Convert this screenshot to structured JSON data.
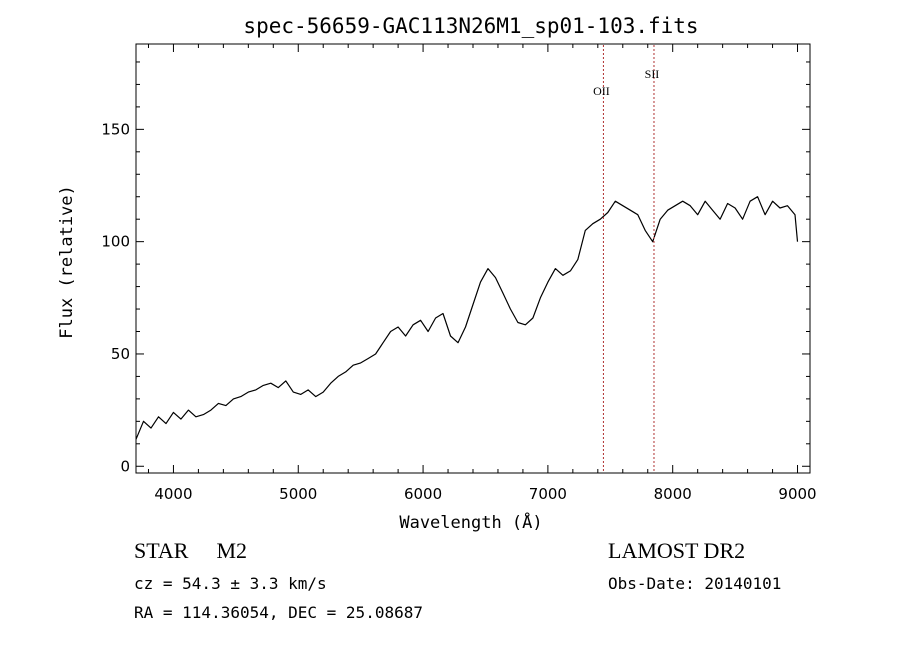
{
  "chart_data": {
    "type": "line",
    "title": "spec-56659-GAC113N26M1_sp01-103.fits",
    "xlabel": "Wavelength (Å)",
    "ylabel": "Flux (relative)",
    "xlim": [
      3700,
      9100
    ],
    "ylim": [
      -3,
      188
    ],
    "xticks": [
      4000,
      5000,
      6000,
      7000,
      8000,
      9000
    ],
    "yticks": [
      0,
      50,
      100,
      150
    ],
    "line_color": "#000000",
    "marker_color": "#b03030",
    "emission_lines": [
      {
        "name": "OII",
        "wavelength": 7445
      },
      {
        "name": "SII",
        "wavelength": 7850
      }
    ],
    "series": [
      {
        "name": "flux",
        "x": [
          3700,
          3760,
          3820,
          3880,
          3940,
          4000,
          4060,
          4120,
          4180,
          4240,
          4300,
          4360,
          4420,
          4480,
          4540,
          4600,
          4660,
          4720,
          4780,
          4840,
          4900,
          4960,
          5020,
          5080,
          5140,
          5200,
          5260,
          5320,
          5380,
          5440,
          5500,
          5560,
          5620,
          5680,
          5740,
          5800,
          5860,
          5920,
          5980,
          6040,
          6100,
          6160,
          6220,
          6280,
          6340,
          6400,
          6460,
          6520,
          6580,
          6640,
          6700,
          6760,
          6820,
          6880,
          6940,
          7000,
          7060,
          7120,
          7180,
          7240,
          7300,
          7360,
          7420,
          7480,
          7540,
          7600,
          7660,
          7720,
          7780,
          7840,
          7900,
          7960,
          8020,
          8080,
          8140,
          8200,
          8260,
          8320,
          8380,
          8440,
          8500,
          8560,
          8620,
          8680,
          8740,
          8800,
          8860,
          8920,
          8980,
          9000
        ],
        "y": [
          12,
          20,
          17,
          22,
          19,
          24,
          21,
          25,
          22,
          23,
          25,
          28,
          27,
          30,
          31,
          33,
          34,
          36,
          37,
          35,
          38,
          33,
          32,
          34,
          31,
          33,
          37,
          40,
          42,
          45,
          46,
          48,
          50,
          55,
          60,
          62,
          58,
          63,
          65,
          60,
          66,
          68,
          58,
          55,
          62,
          72,
          82,
          88,
          84,
          77,
          70,
          64,
          63,
          66,
          75,
          82,
          88,
          85,
          87,
          92,
          105,
          108,
          110,
          113,
          118,
          116,
          114,
          112,
          105,
          100,
          110,
          114,
          116,
          118,
          116,
          112,
          118,
          114,
          110,
          117,
          115,
          110,
          118,
          120,
          112,
          118,
          115,
          116,
          112,
          100
        ]
      }
    ]
  },
  "info": {
    "object_class": "STAR",
    "spectral_type": "M2",
    "cz": "cz = 54.3 ± 3.3 km/s",
    "radec": "RA = 114.36054, DEC =  25.08687",
    "survey": "LAMOST DR2",
    "obs_date": "Obs-Date: 20140101"
  }
}
